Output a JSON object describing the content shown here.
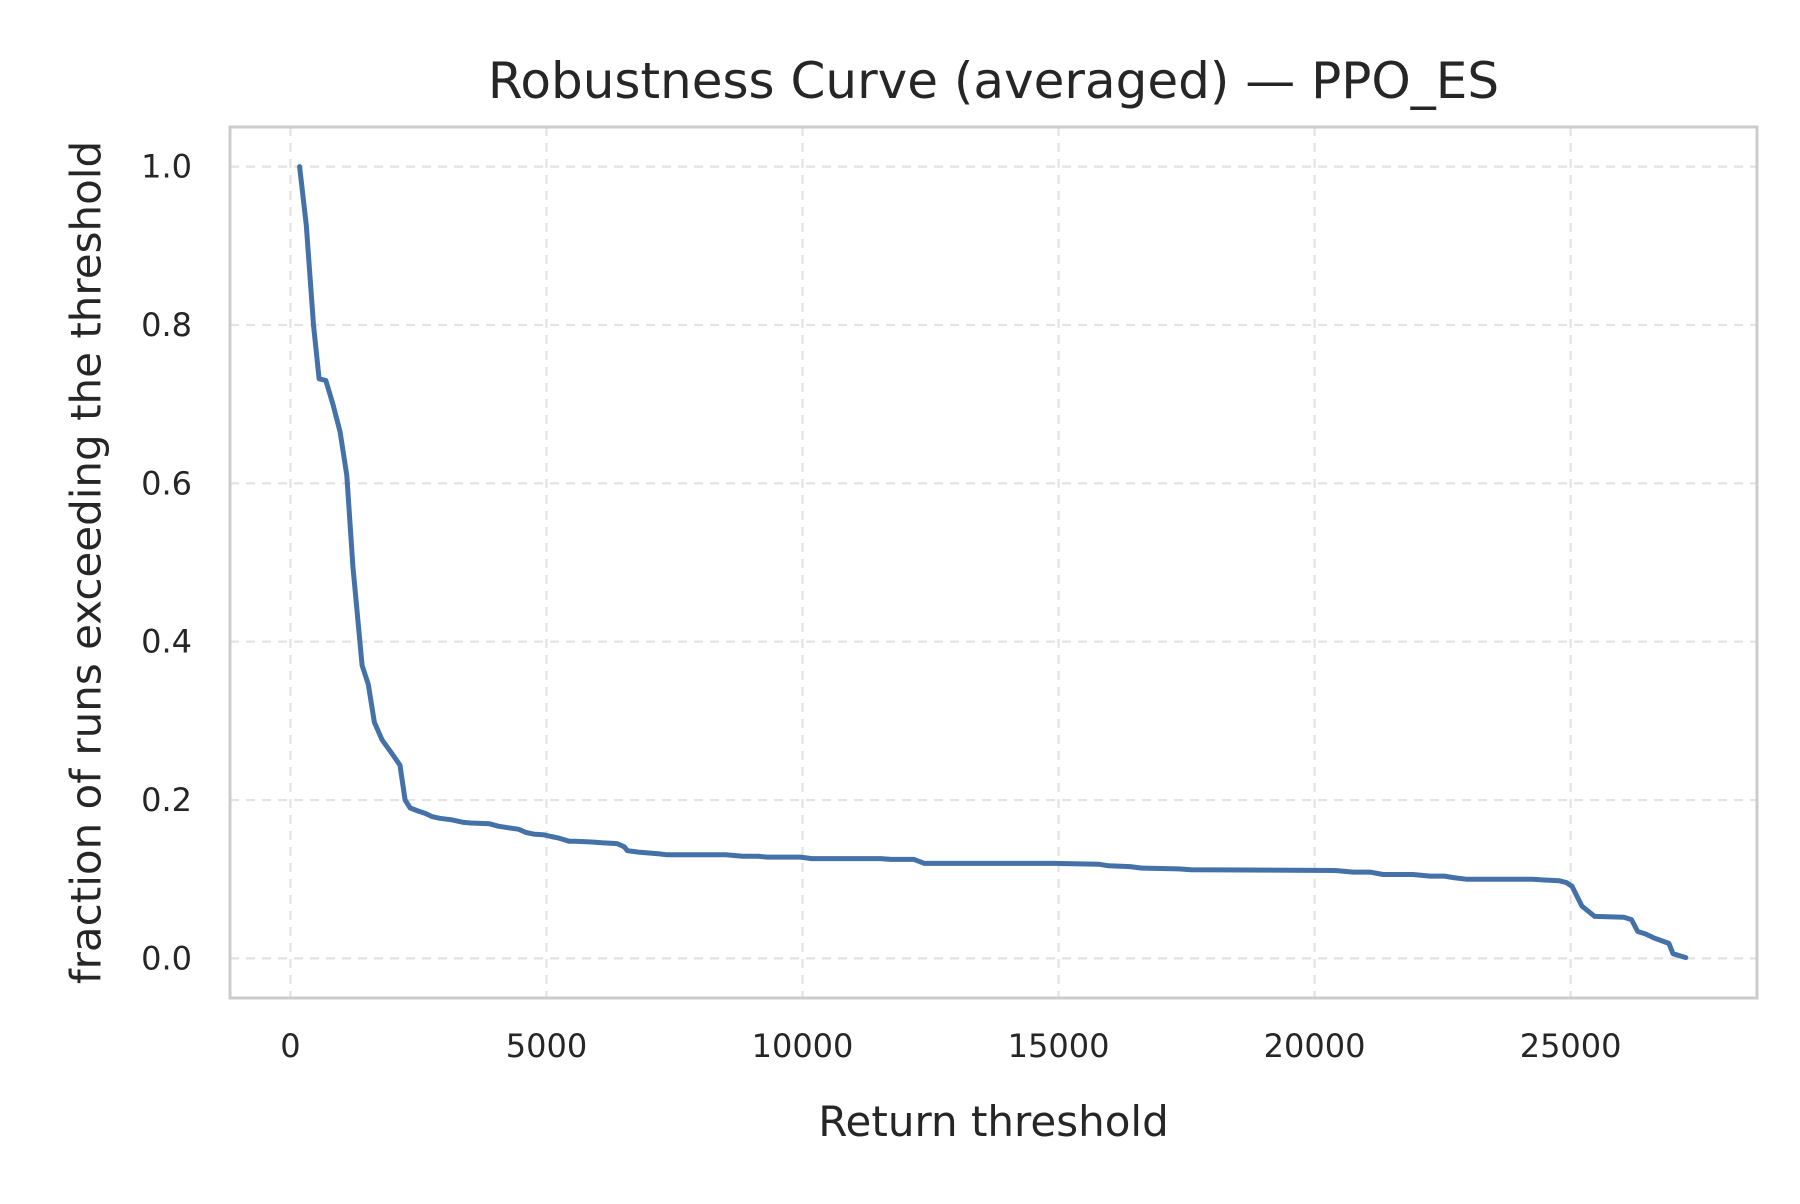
{
  "chart_data": {
    "type": "line",
    "title": "Robustness Curve (averaged) — PPO_ES",
    "xlabel": "Return threshold",
    "ylabel": "fraction of runs exceeding the threshold",
    "xlim": [
      -1180,
      28640
    ],
    "ylim": [
      -0.05,
      1.05
    ],
    "xticks": [
      0,
      5000,
      10000,
      15000,
      20000,
      25000
    ],
    "xtick_labels": [
      "0",
      "5000",
      "10000",
      "15000",
      "20000",
      "25000"
    ],
    "yticks": [
      0.0,
      0.2,
      0.4,
      0.6,
      0.8,
      1.0
    ],
    "ytick_labels": [
      "0.0",
      "0.2",
      "0.4",
      "0.6",
      "0.8",
      "1.0"
    ],
    "grid": true,
    "line_color": "#4472a8",
    "series": [
      {
        "x": [
          180,
          310,
          450,
          560,
          690,
          830,
          970,
          1100,
          1220,
          1400,
          1520,
          1640,
          1790,
          1990,
          2140,
          2240,
          2340,
          2500,
          2640,
          2770,
          2920,
          3150,
          3360,
          3520,
          3890,
          4060,
          4260,
          4460,
          4600,
          4750,
          4960,
          5090,
          5240,
          5440,
          5560,
          5890,
          6080,
          6380,
          6520,
          6580,
          6820,
          7210,
          7330,
          8500,
          8830,
          9140,
          9310,
          9960,
          10180,
          11530,
          11730,
          12180,
          12380,
          14920,
          15780,
          15980,
          16400,
          16630,
          17340,
          17590,
          20400,
          20760,
          21080,
          21340,
          21920,
          22260,
          22540,
          22710,
          22960,
          24260,
          24490,
          24780,
          24910,
          25030,
          25220,
          25470,
          26040,
          26190,
          26310,
          26460,
          26620,
          26790,
          26920,
          27000,
          27250
        ],
        "y": [
          1.0,
          0.926,
          0.8,
          0.732,
          0.73,
          0.7,
          0.665,
          0.61,
          0.495,
          0.37,
          0.346,
          0.298,
          0.276,
          0.258,
          0.244,
          0.2,
          0.19,
          0.186,
          0.183,
          0.179,
          0.177,
          0.175,
          0.172,
          0.171,
          0.17,
          0.167,
          0.165,
          0.163,
          0.159,
          0.157,
          0.156,
          0.154,
          0.152,
          0.148,
          0.148,
          0.147,
          0.146,
          0.145,
          0.141,
          0.136,
          0.134,
          0.132,
          0.131,
          0.131,
          0.129,
          0.129,
          0.128,
          0.128,
          0.126,
          0.126,
          0.125,
          0.125,
          0.12,
          0.12,
          0.119,
          0.117,
          0.116,
          0.114,
          0.113,
          0.112,
          0.111,
          0.109,
          0.109,
          0.106,
          0.106,
          0.104,
          0.104,
          0.102,
          0.1,
          0.1,
          0.099,
          0.098,
          0.096,
          0.091,
          0.066,
          0.053,
          0.052,
          0.049,
          0.034,
          0.031,
          0.026,
          0.022,
          0.019,
          0.006,
          0.001
        ]
      }
    ]
  }
}
